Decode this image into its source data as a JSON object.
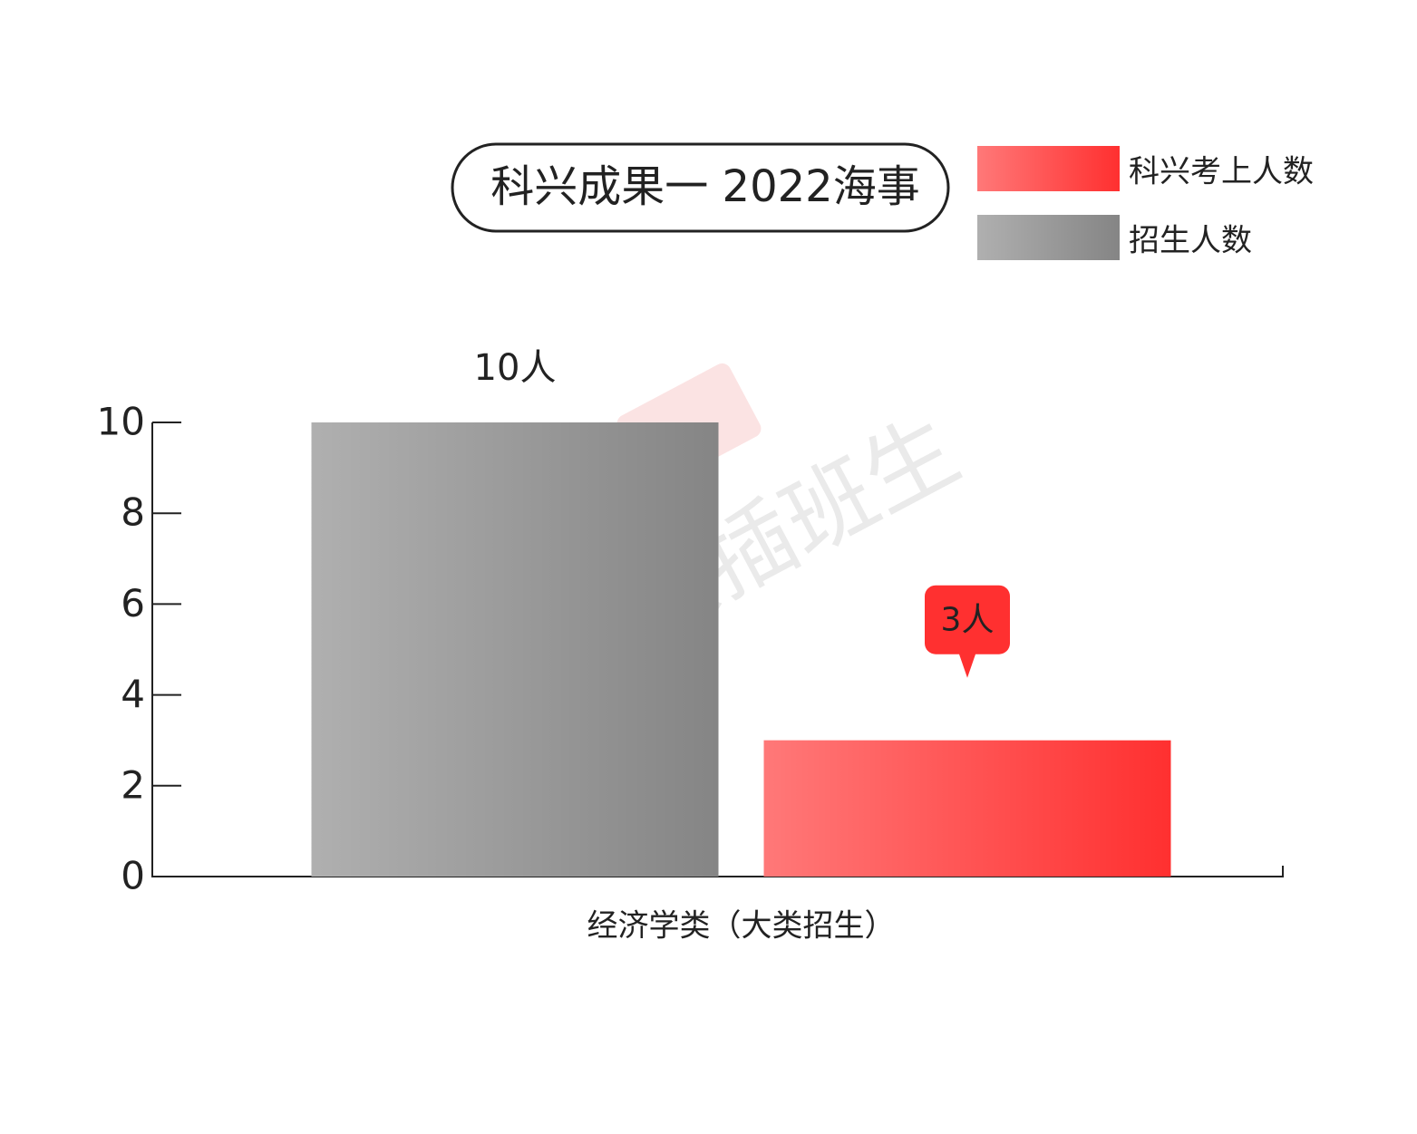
{
  "chart_data": {
    "type": "bar",
    "title": "科兴成果一 2022海事",
    "categories": [
      "经济学类（大类招生）"
    ],
    "series": [
      {
        "name": "科兴考上人数",
        "color": "#ff3030",
        "values": [
          3
        ],
        "value_labels": [
          "3人"
        ]
      },
      {
        "name": "招生人数",
        "color": "#858585",
        "values": [
          10
        ],
        "value_labels": [
          "10人"
        ]
      }
    ],
    "ylim": [
      0,
      10
    ],
    "yticks": [
      0,
      2,
      4,
      6,
      8,
      10
    ],
    "legend": "top-right",
    "watermark": "科兴插班生"
  }
}
